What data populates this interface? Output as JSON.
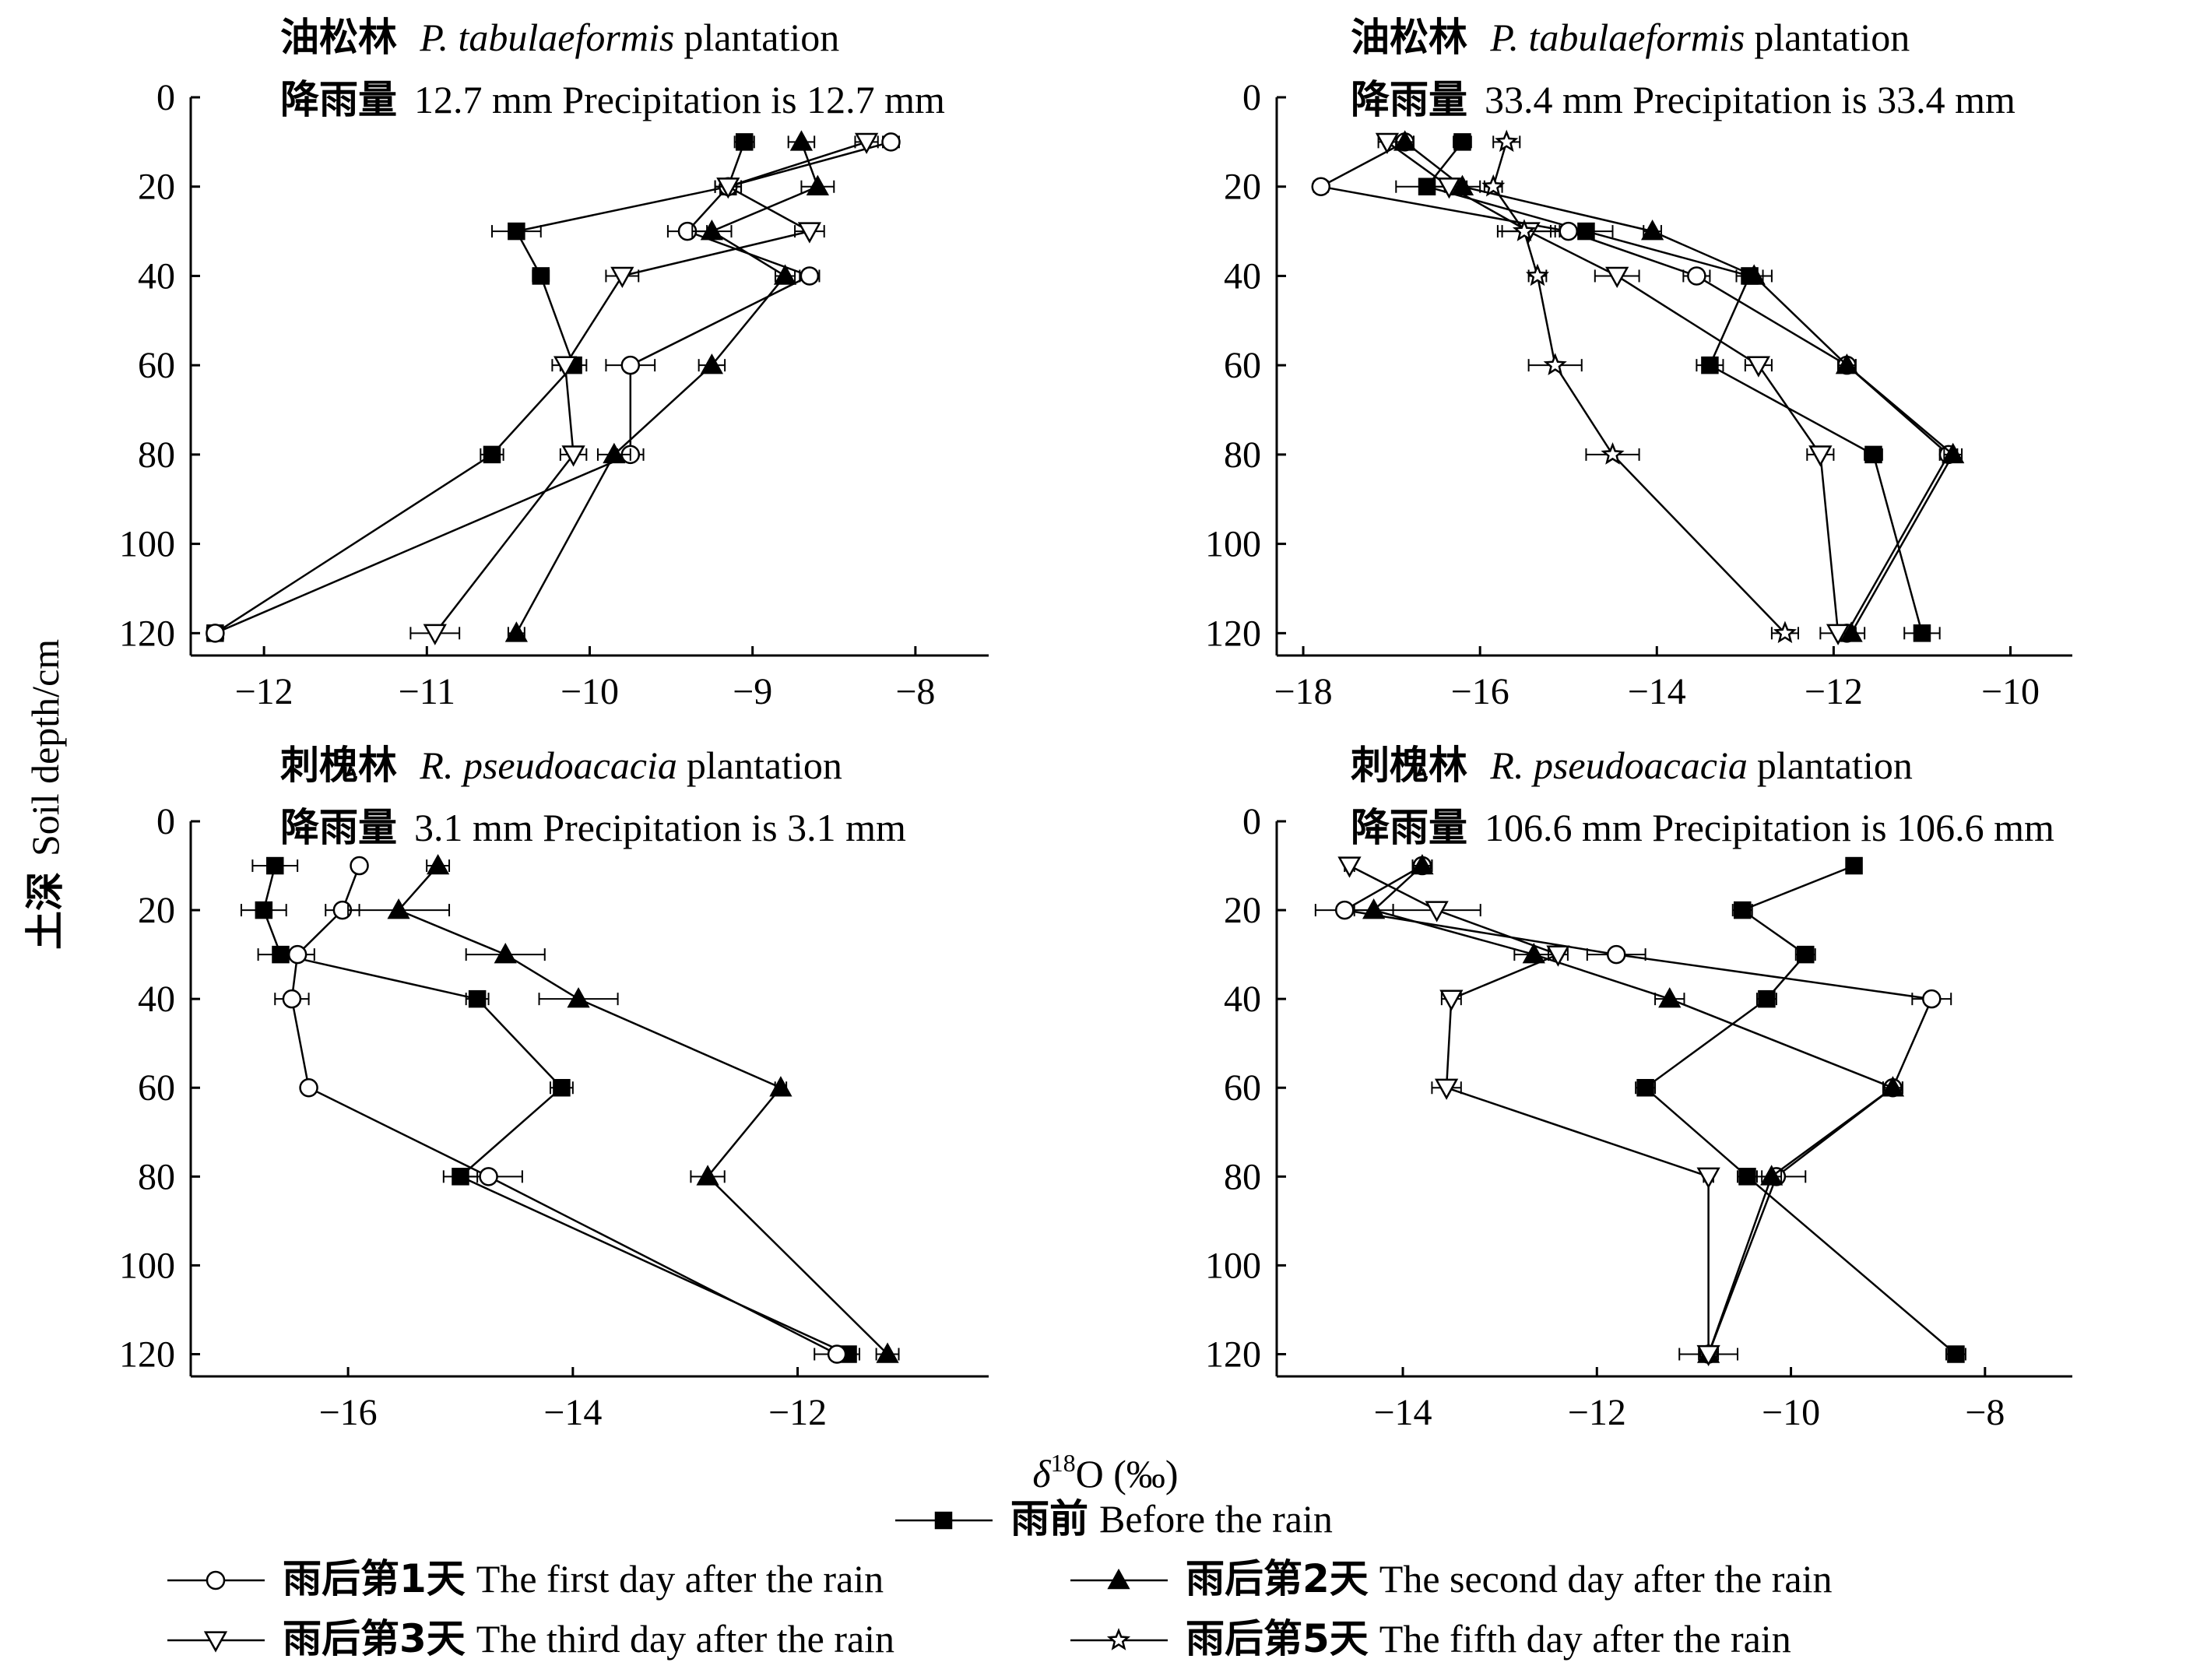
{
  "ylabel_cn": "土深",
  "ylabel_en": "Soil depth/cm",
  "xlabel": "δ18O (‰)",
  "xlabel_parts": {
    "delta": "δ",
    "sup": "18",
    "rest": "O (‰)"
  },
  "legend": [
    {
      "cn": "雨前",
      "en": "Before the rain",
      "marker": "square"
    },
    {
      "cn": "雨后第1天",
      "en": "The first day after the rain",
      "marker": "circle"
    },
    {
      "cn": "雨后第2天",
      "en": "The second day after the rain",
      "marker": "triangle"
    },
    {
      "cn": "雨后第3天",
      "en": "The third day after the rain",
      "marker": "triangle-down"
    },
    {
      "cn": "雨后第5天",
      "en": "The fifth day after the rain",
      "marker": "star"
    }
  ],
  "chart_data": [
    {
      "type": "line",
      "title_cn": "油松林",
      "title_species": "P. tabulaeformis",
      "title_suffix": "plantation",
      "subtitle_cn": "降雨量",
      "subtitle_en": "12.7 mm Precipitation is 12.7 mm",
      "xlim": [
        -12.45,
        -7.55
      ],
      "xticks": [
        -12,
        -11,
        -10,
        -9,
        -8
      ],
      "ylim": [
        0,
        125
      ],
      "yticks": [
        0,
        20,
        40,
        60,
        80,
        100,
        120
      ],
      "series": [
        {
          "marker": "square",
          "points": [
            [
              -9.05,
              10
            ],
            [
              -9.15,
              20
            ],
            [
              -10.45,
              30
            ],
            [
              -10.3,
              40
            ],
            [
              -10.1,
              60
            ],
            [
              -10.6,
              80
            ],
            [
              -12.3,
              120
            ]
          ],
          "err": [
            0.06,
            0.08,
            0.15,
            0.05,
            0.08,
            0.07,
            0.05
          ]
        },
        {
          "marker": "circle",
          "points": [
            [
              -8.15,
              10
            ],
            [
              -9.15,
              20
            ],
            [
              -9.4,
              30
            ],
            [
              -8.65,
              40
            ],
            [
              -9.75,
              60
            ],
            [
              -9.75,
              80
            ],
            [
              -12.3,
              120
            ]
          ],
          "err": [
            0.05,
            0.08,
            0.12,
            0.06,
            0.15,
            0.08,
            0.05
          ]
        },
        {
          "marker": "triangle",
          "points": [
            [
              -8.7,
              10
            ],
            [
              -8.6,
              20
            ],
            [
              -9.25,
              30
            ],
            [
              -8.8,
              40
            ],
            [
              -9.25,
              60
            ],
            [
              -9.85,
              80
            ],
            [
              -10.45,
              120
            ]
          ],
          "err": [
            0.08,
            0.1,
            0.12,
            0.06,
            0.08,
            0.1,
            0.05
          ]
        },
        {
          "marker": "triangle-down",
          "points": [
            [
              -8.3,
              10
            ],
            [
              -9.15,
              20
            ],
            [
              -8.65,
              30
            ],
            [
              -9.8,
              40
            ],
            [
              -10.15,
              60
            ],
            [
              -10.1,
              80
            ],
            [
              -10.95,
              120
            ]
          ],
          "err": [
            0.07,
            0.08,
            0.09,
            0.1,
            0.08,
            0.08,
            0.15
          ]
        }
      ]
    },
    {
      "type": "line",
      "title_cn": "油松林",
      "title_species": "P. tabulaeformis",
      "title_suffix": "plantation",
      "subtitle_cn": "降雨量",
      "subtitle_en": "33.4 mm Precipitation is 33.4 mm",
      "xlim": [
        -18.3,
        -9.3
      ],
      "xticks": [
        -18,
        -16,
        -14,
        -12,
        -10
      ],
      "ylim": [
        0,
        125
      ],
      "yticks": [
        0,
        20,
        40,
        60,
        80,
        100,
        120
      ],
      "series": [
        {
          "marker": "square",
          "points": [
            [
              -16.2,
              10
            ],
            [
              -16.6,
              20
            ],
            [
              -14.8,
              30
            ],
            [
              -12.95,
              40
            ],
            [
              -13.4,
              60
            ],
            [
              -11.55,
              80
            ],
            [
              -11.0,
              120
            ]
          ],
          "err": [
            0.1,
            0.35,
            0.3,
            0.15,
            0.15,
            0.1,
            0.2
          ]
        },
        {
          "marker": "circle",
          "points": [
            [
              -16.85,
              10
            ],
            [
              -17.8,
              20
            ],
            [
              -15.0,
              30
            ],
            [
              -13.55,
              40
            ],
            [
              -11.85,
              60
            ],
            [
              -10.7,
              80
            ],
            [
              -11.85,
              120
            ]
          ],
          "err": [
            0.1,
            0.08,
            0.2,
            0.15,
            0.1,
            0.1,
            0.1
          ]
        },
        {
          "marker": "triangle",
          "points": [
            [
              -16.85,
              10
            ],
            [
              -16.2,
              20
            ],
            [
              -14.05,
              30
            ],
            [
              -12.9,
              40
            ],
            [
              -11.85,
              60
            ],
            [
              -10.65,
              80
            ],
            [
              -11.8,
              120
            ]
          ],
          "err": [
            0.1,
            0.2,
            0.1,
            0.2,
            0.1,
            0.1,
            0.15
          ]
        },
        {
          "marker": "triangle-down",
          "points": [
            [
              -17.05,
              10
            ],
            [
              -16.35,
              20
            ],
            [
              -15.45,
              30
            ],
            [
              -14.45,
              40
            ],
            [
              -12.85,
              60
            ],
            [
              -12.15,
              80
            ],
            [
              -11.95,
              120
            ]
          ],
          "err": [
            0.1,
            0.2,
            0.3,
            0.25,
            0.15,
            0.15,
            0.2
          ]
        },
        {
          "marker": "star",
          "points": [
            [
              -15.7,
              10
            ],
            [
              -15.85,
              20
            ],
            [
              -15.5,
              30
            ],
            [
              -15.35,
              40
            ],
            [
              -15.15,
              60
            ],
            [
              -14.5,
              80
            ],
            [
              -12.55,
              120
            ]
          ],
          "err": [
            0.15,
            0.1,
            0.3,
            0.1,
            0.3,
            0.3,
            0.15
          ]
        }
      ]
    },
    {
      "type": "line",
      "title_cn": "刺槐林",
      "title_species": "R. pseudoacacia",
      "title_suffix": "plantation",
      "subtitle_cn": "降雨量",
      "subtitle_en": "3.1 mm Precipitation is 3.1 mm",
      "xlim": [
        -17.4,
        -10.3
      ],
      "xticks": [
        -16,
        -14,
        -12
      ],
      "ylim": [
        0,
        125
      ],
      "yticks": [
        0,
        20,
        40,
        60,
        80,
        100,
        120
      ],
      "series": [
        {
          "marker": "square",
          "points": [
            [
              -16.65,
              10
            ],
            [
              -16.75,
              20
            ],
            [
              -16.6,
              30
            ],
            [
              -14.85,
              40
            ],
            [
              -14.1,
              60
            ],
            [
              -15.0,
              80
            ],
            [
              -11.55,
              120
            ]
          ],
          "err": [
            0.2,
            0.2,
            0.2,
            0.1,
            0.1,
            0.15,
            0.1
          ]
        },
        {
          "marker": "circle",
          "points": [
            [
              -15.9,
              10
            ],
            [
              -16.05,
              20
            ],
            [
              -16.45,
              30
            ],
            [
              -16.5,
              40
            ],
            [
              -16.35,
              60
            ],
            [
              -14.75,
              80
            ],
            [
              -11.65,
              120
            ]
          ],
          "err": [
            0.05,
            0.15,
            0.15,
            0.15,
            0.05,
            0.3,
            0.2
          ]
        },
        {
          "marker": "triangle",
          "points": [
            [
              -15.2,
              10
            ],
            [
              -15.55,
              20
            ],
            [
              -14.6,
              30
            ],
            [
              -13.95,
              40
            ],
            [
              -12.15,
              60
            ],
            [
              -12.8,
              80
            ],
            [
              -11.2,
              120
            ]
          ],
          "err": [
            0.1,
            0.45,
            0.35,
            0.35,
            0.05,
            0.15,
            0.1
          ]
        }
      ]
    },
    {
      "type": "line",
      "title_cn": "刺槐林",
      "title_species": "R. pseudoacacia",
      "title_suffix": "plantation",
      "subtitle_cn": "降雨量",
      "subtitle_en": "106.6 mm Precipitation is 106.6 mm",
      "xlim": [
        -15.3,
        -7.1
      ],
      "xticks": [
        -14,
        -12,
        -10,
        -8
      ],
      "ylim": [
        0,
        125
      ],
      "yticks": [
        0,
        20,
        40,
        60,
        80,
        100,
        120
      ],
      "series": [
        {
          "marker": "square",
          "points": [
            [
              -9.35,
              10
            ],
            [
              -10.5,
              20
            ],
            [
              -9.85,
              30
            ],
            [
              -10.25,
              40
            ],
            [
              -11.5,
              60
            ],
            [
              -10.45,
              80
            ],
            [
              -8.3,
              120
            ]
          ],
          "err": [
            0.05,
            0.1,
            0.1,
            0.1,
            0.1,
            0.1,
            0.1
          ]
        },
        {
          "marker": "circle",
          "points": [
            [
              -13.8,
              10
            ],
            [
              -14.6,
              20
            ],
            [
              -11.8,
              30
            ],
            [
              -8.55,
              40
            ],
            [
              -8.95,
              60
            ],
            [
              -10.15,
              80
            ],
            [
              -10.85,
              120
            ]
          ],
          "err": [
            0.1,
            0.3,
            0.3,
            0.2,
            0.1,
            0.3,
            0.3
          ]
        },
        {
          "marker": "triangle",
          "points": [
            [
              -13.8,
              10
            ],
            [
              -14.3,
              20
            ],
            [
              -12.65,
              30
            ],
            [
              -11.25,
              40
            ],
            [
              -8.95,
              60
            ],
            [
              -10.2,
              80
            ],
            [
              -10.85,
              120
            ]
          ],
          "err": [
            0.1,
            0.2,
            0.2,
            0.15,
            0.1,
            0.1,
            0.1
          ]
        },
        {
          "marker": "triangle-down",
          "points": [
            [
              -14.55,
              10
            ],
            [
              -13.65,
              20
            ],
            [
              -12.4,
              30
            ],
            [
              -13.5,
              40
            ],
            [
              -13.55,
              60
            ],
            [
              -10.85,
              80
            ],
            [
              -10.85,
              120
            ]
          ],
          "err": [
            0.05,
            0.45,
            0.1,
            0.1,
            0.15,
            0.05,
            0.05
          ]
        }
      ]
    }
  ]
}
